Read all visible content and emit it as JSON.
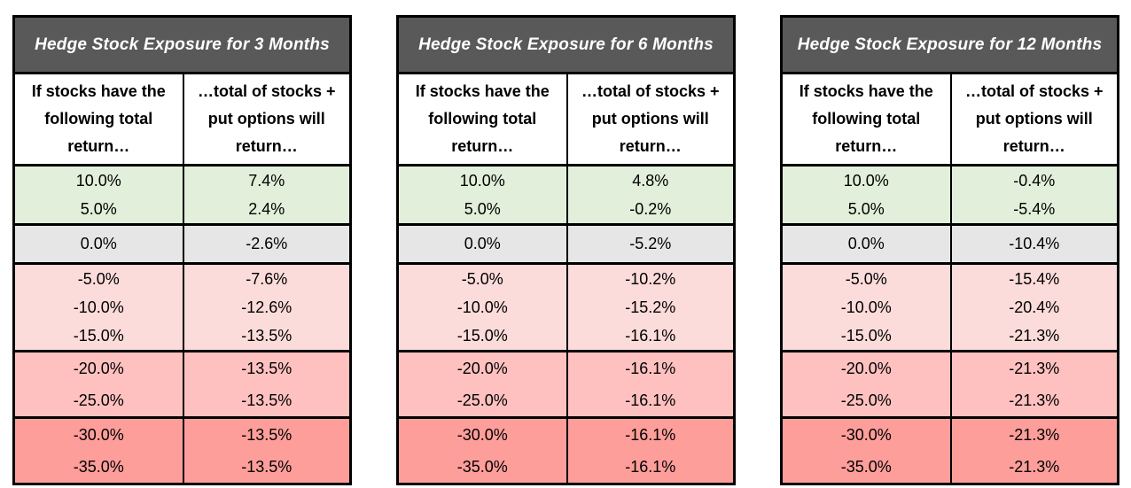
{
  "palette": {
    "page_bg": "#FFFFFF",
    "title_bg": "#595959",
    "title_text": "#FFFFFF",
    "border": "#000000",
    "tone_green": "#E2EFDA",
    "tone_gray": "#E7E6E6",
    "tone_pink_light": "#FCDCDA",
    "tone_pink_mid": "#FFC1C0",
    "tone_pink_dark": "#FD9E9B"
  },
  "chart_data": [
    {
      "type": "table",
      "title": "Hedge Stock Exposure for 3 Months",
      "columns": [
        "If stocks have the\nfollowing total\nreturn…",
        "…total of stocks +\nput options will\nreturn…"
      ],
      "groups": [
        {
          "tone": "green",
          "rows": [
            [
              "10.0%",
              "7.4%"
            ],
            [
              "5.0%",
              "2.4%"
            ]
          ]
        },
        {
          "tone": "gray",
          "rows": [
            [
              "0.0%",
              "-2.6%"
            ]
          ]
        },
        {
          "tone": "pink_light",
          "rows": [
            [
              "-5.0%",
              "-7.6%"
            ],
            [
              "-10.0%",
              "-12.6%"
            ],
            [
              "-15.0%",
              "-13.5%"
            ]
          ]
        },
        {
          "tone": "pink_mid",
          "rows": [
            [
              "-20.0%",
              "-13.5%"
            ],
            [
              "-25.0%",
              "-13.5%"
            ]
          ]
        },
        {
          "tone": "pink_dark",
          "rows": [
            [
              "-30.0%",
              "-13.5%"
            ],
            [
              "-35.0%",
              "-13.5%"
            ]
          ]
        }
      ]
    },
    {
      "type": "table",
      "title": "Hedge Stock Exposure for 6 Months",
      "columns": [
        "If stocks have the\nfollowing total\nreturn…",
        "…total of stocks +\nput options will\nreturn…"
      ],
      "groups": [
        {
          "tone": "green",
          "rows": [
            [
              "10.0%",
              "4.8%"
            ],
            [
              "5.0%",
              "-0.2%"
            ]
          ]
        },
        {
          "tone": "gray",
          "rows": [
            [
              "0.0%",
              "-5.2%"
            ]
          ]
        },
        {
          "tone": "pink_light",
          "rows": [
            [
              "-5.0%",
              "-10.2%"
            ],
            [
              "-10.0%",
              "-15.2%"
            ],
            [
              "-15.0%",
              "-16.1%"
            ]
          ]
        },
        {
          "tone": "pink_mid",
          "rows": [
            [
              "-20.0%",
              "-16.1%"
            ],
            [
              "-25.0%",
              "-16.1%"
            ]
          ]
        },
        {
          "tone": "pink_dark",
          "rows": [
            [
              "-30.0%",
              "-16.1%"
            ],
            [
              "-35.0%",
              "-16.1%"
            ]
          ]
        }
      ]
    },
    {
      "type": "table",
      "title": "Hedge Stock Exposure for 12 Months",
      "columns": [
        "If stocks have the\nfollowing total\nreturn…",
        "…total of stocks +\nput options will\nreturn…"
      ],
      "groups": [
        {
          "tone": "green",
          "rows": [
            [
              "10.0%",
              "-0.4%"
            ],
            [
              "5.0%",
              "-5.4%"
            ]
          ]
        },
        {
          "tone": "gray",
          "rows": [
            [
              "0.0%",
              "-10.4%"
            ]
          ]
        },
        {
          "tone": "pink_light",
          "rows": [
            [
              "-5.0%",
              "-15.4%"
            ],
            [
              "-10.0%",
              "-20.4%"
            ],
            [
              "-15.0%",
              "-21.3%"
            ]
          ]
        },
        {
          "tone": "pink_mid",
          "rows": [
            [
              "-20.0%",
              "-21.3%"
            ],
            [
              "-25.0%",
              "-21.3%"
            ]
          ]
        },
        {
          "tone": "pink_dark",
          "rows": [
            [
              "-30.0%",
              "-21.3%"
            ],
            [
              "-35.0%",
              "-21.3%"
            ]
          ]
        }
      ]
    }
  ]
}
